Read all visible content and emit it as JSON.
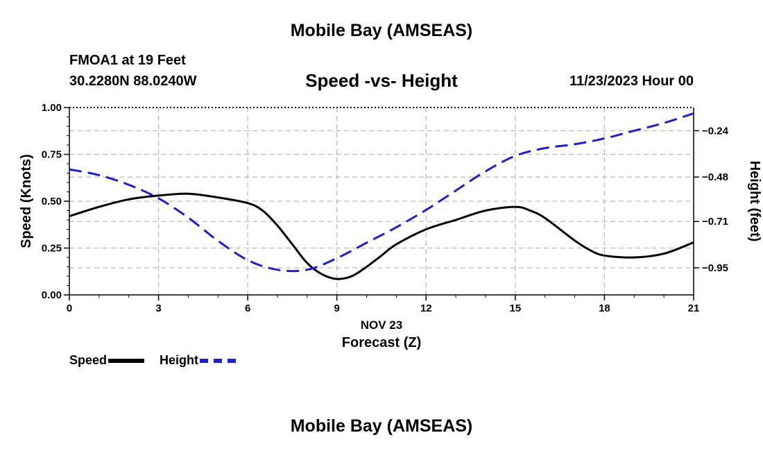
{
  "header": {
    "title": "Mobile Bay (AMSEAS)",
    "station": "FMOA1 at 19 Feet",
    "coordinates": "30.2280N  88.0240W",
    "chart_title": "Speed -vs- Height",
    "timestamp": "11/23/2023 Hour 00"
  },
  "footer": {
    "title": "Mobile Bay (AMSEAS)"
  },
  "legend": {
    "speed_label": "Speed",
    "height_label": "Height"
  },
  "colors": {
    "speed": "#000000",
    "height": "#1f1fcf",
    "grid": "#bbbbbb"
  },
  "chart_data": {
    "type": "line",
    "title": "Speed -vs- Height",
    "xlabel": "Forecast (Z)",
    "xlabel_date": "NOV 23",
    "ylabel": "Speed (Knots)",
    "y2label": "Height (feet)",
    "xlim": [
      0,
      21
    ],
    "ylim": [
      0,
      1
    ],
    "y2lim": [
      -1.09,
      -0.12
    ],
    "x_ticks": [
      0,
      3,
      6,
      9,
      12,
      15,
      18,
      21
    ],
    "x_tick_labels": [
      "0",
      "3",
      "6",
      "9",
      "12",
      "15",
      "18",
      "21"
    ],
    "y_ticks": [
      0,
      0.25,
      0.5,
      0.75,
      1.0
    ],
    "y_tick_labels": [
      "0.00",
      "0.25",
      "0.50",
      "0.75",
      "1.00"
    ],
    "y2_ticks": [
      -0.24,
      -0.48,
      -0.71,
      -0.95
    ],
    "y2_tick_labels": [
      "−0.24",
      "−0.48",
      "−0.71",
      "−0.95"
    ],
    "grid": true,
    "legend_position": "bottom-left",
    "series": [
      {
        "name": "Speed",
        "axis": "left",
        "style": "solid",
        "x": [
          0,
          1,
          2,
          3,
          4,
          5,
          6,
          6.5,
          7,
          7.5,
          8,
          8.5,
          9,
          9.5,
          10,
          10.5,
          11,
          12,
          13,
          14,
          15,
          15.5,
          16,
          17,
          17.5,
          18,
          19,
          20,
          21
        ],
        "values": [
          0.42,
          0.47,
          0.51,
          0.53,
          0.54,
          0.52,
          0.49,
          0.45,
          0.37,
          0.27,
          0.17,
          0.11,
          0.085,
          0.1,
          0.15,
          0.21,
          0.27,
          0.35,
          0.4,
          0.45,
          0.47,
          0.45,
          0.41,
          0.29,
          0.24,
          0.21,
          0.2,
          0.22,
          0.28
        ]
      },
      {
        "name": "Height",
        "axis": "right",
        "style": "dashed",
        "x": [
          0,
          1,
          2,
          3,
          4,
          5,
          6,
          7,
          8,
          9,
          10,
          11,
          12,
          13,
          14,
          15,
          16,
          17,
          18,
          19,
          20,
          21
        ],
        "values": [
          -0.44,
          -0.47,
          -0.52,
          -0.59,
          -0.69,
          -0.81,
          -0.91,
          -0.96,
          -0.96,
          -0.9,
          -0.82,
          -0.74,
          -0.65,
          -0.55,
          -0.45,
          -0.37,
          -0.33,
          -0.31,
          -0.28,
          -0.24,
          -0.2,
          -0.15
        ]
      }
    ]
  }
}
